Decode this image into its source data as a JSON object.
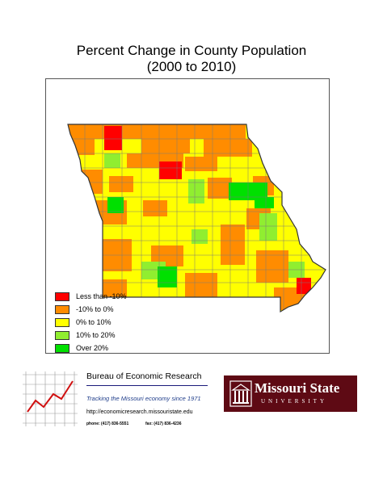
{
  "title_line1": "Percent Change in County Population",
  "title_line2": "(2000 to 2010)",
  "legend": [
    {
      "label": "Less than -10%",
      "color": "#ff0000"
    },
    {
      "label": "-10% to 0%",
      "color": "#ff8c00"
    },
    {
      "label": "0% to 10%",
      "color": "#ffff00"
    },
    {
      "label": "10% to 20%",
      "color": "#90ee30"
    },
    {
      "label": "Over 20%",
      "color": "#00e000"
    }
  ],
  "ber": {
    "title": "Bureau of Economic Research",
    "tagline": "Tracking the Missouri economy since 1971",
    "url": "http://economicresearch.missouristate.edu",
    "phone": "phone: (417) 836-5551",
    "fax": "fax: (417) 836-4236"
  },
  "university": {
    "name": "Missouri State",
    "sub": "UNIVERSITY"
  }
}
